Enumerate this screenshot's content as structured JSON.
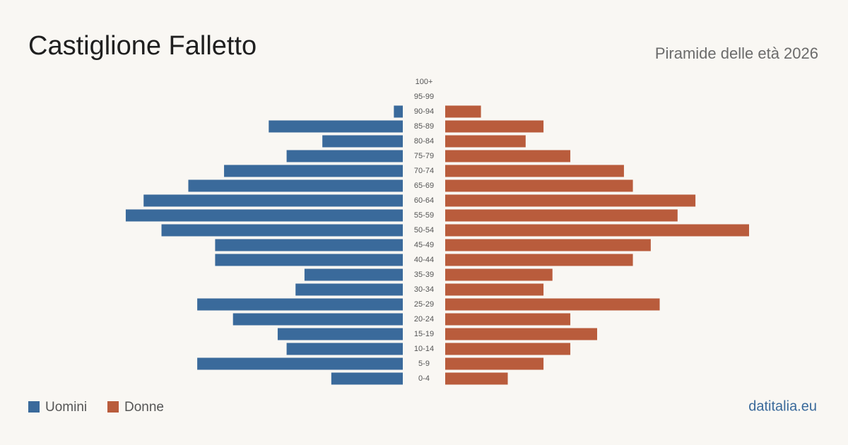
{
  "chart_data": {
    "type": "pyramid",
    "title": "Castiglione Falletto",
    "subtitle": "Piramide delle età 2026",
    "source": "datitalia.eu",
    "categories": [
      "100+",
      "95-99",
      "90-94",
      "85-89",
      "80-84",
      "75-79",
      "70-74",
      "65-69",
      "60-64",
      "55-59",
      "50-54",
      "45-49",
      "40-44",
      "35-39",
      "30-34",
      "25-29",
      "20-24",
      "15-19",
      "10-14",
      "5-9",
      "0-4"
    ],
    "series": [
      {
        "name": "Uomini",
        "color": "#3a6a9b",
        "values": [
          0,
          0,
          1,
          15,
          9,
          13,
          20,
          24,
          29,
          31,
          27,
          21,
          21,
          11,
          12,
          23,
          19,
          14,
          13,
          23,
          8
        ]
      },
      {
        "name": "Donne",
        "color": "#b95c3c",
        "values": [
          0,
          0,
          4,
          11,
          9,
          14,
          20,
          21,
          28,
          26,
          34,
          23,
          21,
          12,
          11,
          24,
          14,
          17,
          14,
          11,
          7
        ]
      }
    ]
  }
}
